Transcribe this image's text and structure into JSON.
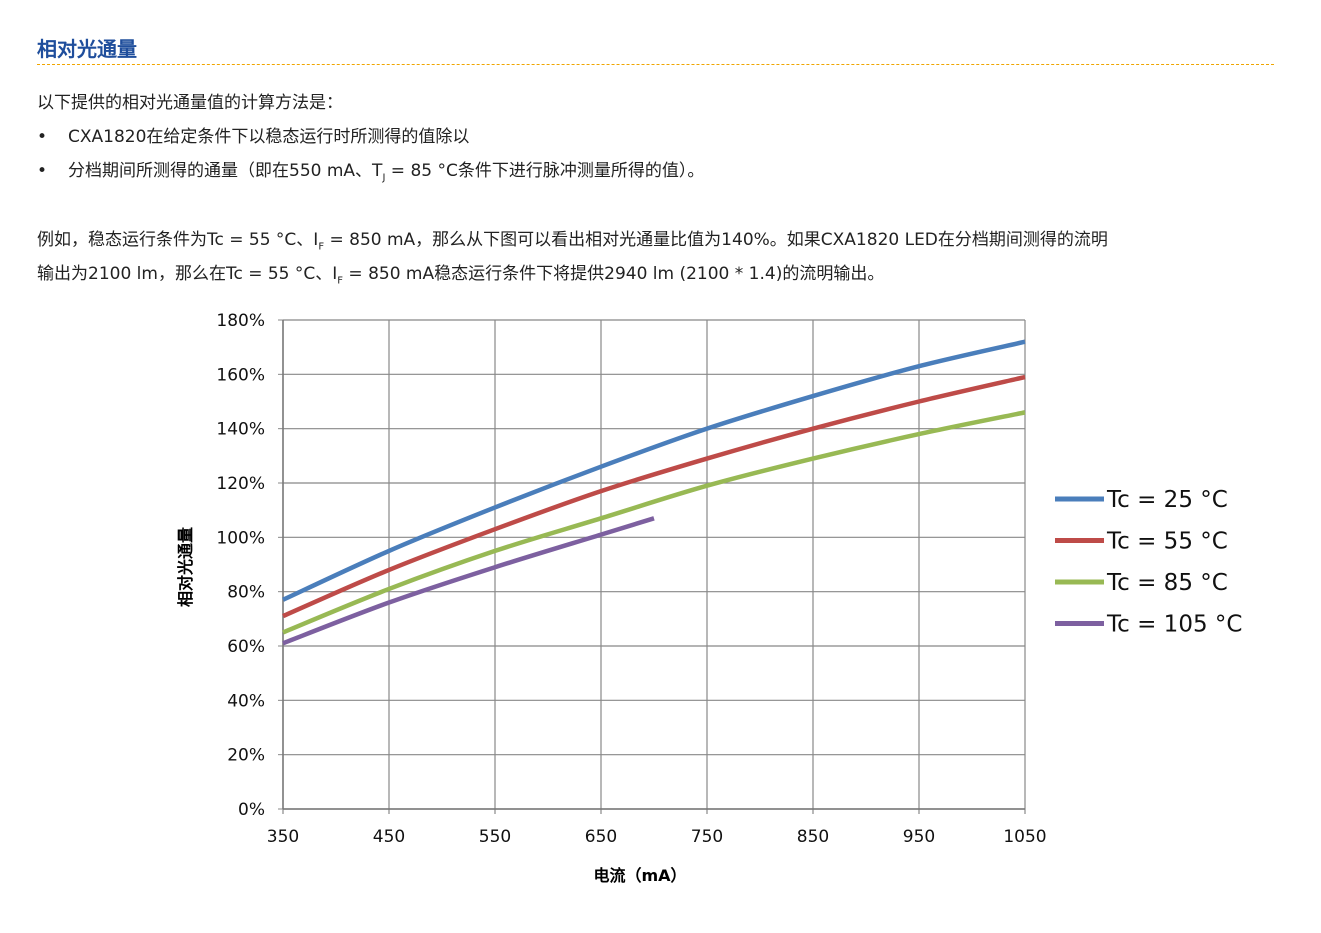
{
  "title": "相对光通量",
  "intro": "以下提供的相对光通量值的计算方法是：",
  "bullets": [
    "CXA1820在给定条件下以稳态运行时所测得的值除以",
    "分档期间所测得的通量（即在550 mA、T",
    "J",
    " = 85 °C条件下进行脉冲测量所得的值）。"
  ],
  "example": {
    "l1a": "例如，稳态运行条件为Tc = 55 °C、I",
    "l1sub": "F",
    "l1b": " = 850 mA，那么从下图可以看出相对光通量比值为140%。如果CXA1820 LED在分档期间测得的流明",
    "l2a": "输出为2100 lm，那么在Tc = 55 °C、I",
    "l2sub": "F",
    "l2b": " = 850 mA稳态运行条件下将提供2940 lm (2100 * 1.4)的流明输出。"
  },
  "chart_data": {
    "type": "line",
    "xlabel": "电流（mA）",
    "ylabel": "相对光通量",
    "xlim": [
      350,
      1050
    ],
    "ylim": [
      0,
      180
    ],
    "xticks": [
      "350",
      "450",
      "550",
      "650",
      "750",
      "850",
      "950",
      "1050"
    ],
    "yticks": [
      "0%",
      "20%",
      "40%",
      "60%",
      "80%",
      "100%",
      "120%",
      "140%",
      "160%",
      "180%"
    ],
    "grid": true,
    "legend": "right",
    "series": [
      {
        "name": "Tc = 25 °C",
        "color": "#4a7ebb",
        "x": [
          350,
          450,
          550,
          650,
          750,
          850,
          950,
          1050
        ],
        "y": [
          77,
          95,
          111,
          126,
          140,
          152,
          163,
          172
        ]
      },
      {
        "name": "Tc = 55 °C",
        "color": "#be4b48",
        "x": [
          350,
          450,
          550,
          650,
          750,
          850,
          950,
          1050
        ],
        "y": [
          71,
          88,
          103,
          117,
          129,
          140,
          150,
          159
        ]
      },
      {
        "name": "Tc = 85 °C",
        "color": "#98b954",
        "x": [
          350,
          450,
          550,
          650,
          750,
          850,
          950,
          1050
        ],
        "y": [
          65,
          81,
          95,
          107,
          119,
          129,
          138,
          146
        ]
      },
      {
        "name": "Tc = 105 °C",
        "color": "#7d60a0",
        "x": [
          350,
          450,
          550,
          650,
          700
        ],
        "y": [
          61,
          76,
          89,
          101,
          107
        ]
      }
    ]
  }
}
